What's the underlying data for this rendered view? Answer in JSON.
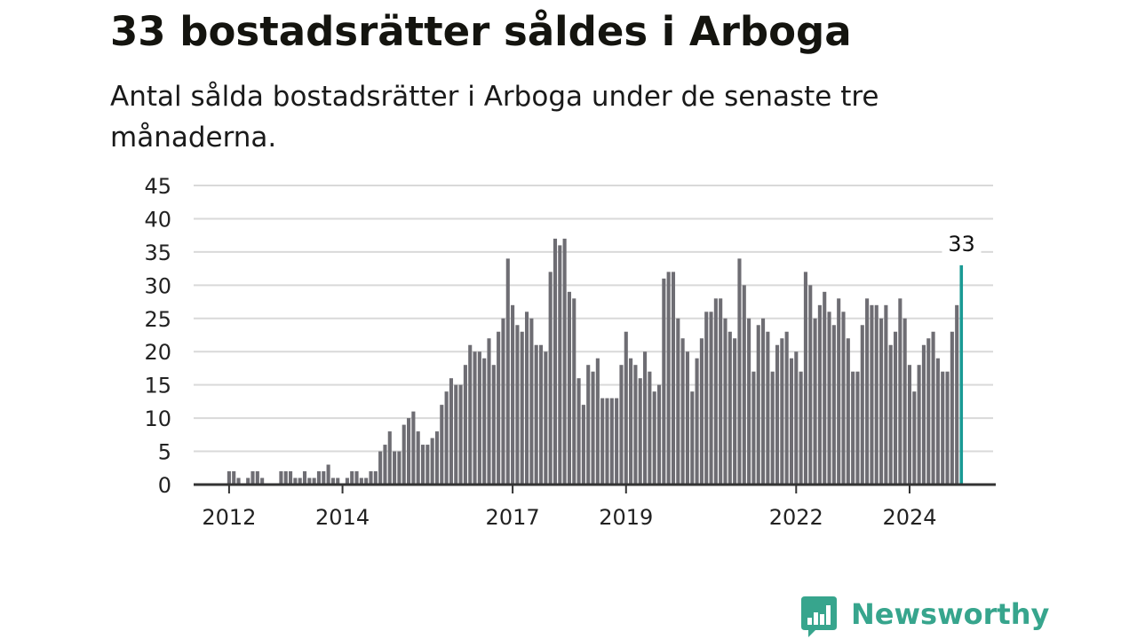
{
  "title": "33 bostadsrätter såldes i Arboga",
  "subtitle": "Antal sålda bostadsrätter i Arboga under de senaste tre månaderna.",
  "brand": {
    "name": "Newsworthy",
    "icon": "bar-chart-speech-bubble-icon",
    "color": "#37a58d"
  },
  "colors": {
    "bar": "#6e6d73",
    "highlight": "#1a9a94",
    "grid": "#d9d9d9",
    "axis": "#333333"
  },
  "chart_data": {
    "type": "bar",
    "title": "33 bostadsrätter såldes i Arboga",
    "subtitle": "Antal sålda bostadsrätter i Arboga under de senaste tre månaderna.",
    "xlabel": "",
    "ylabel": "",
    "ylim": [
      0,
      45
    ],
    "yticks": [
      0,
      5,
      10,
      15,
      20,
      25,
      30,
      35,
      40,
      45
    ],
    "grid": true,
    "x_ticks": [
      {
        "label": "2012",
        "index": 7
      },
      {
        "label": "2014",
        "index": 31
      },
      {
        "label": "2017",
        "index": 67
      },
      {
        "label": "2019",
        "index": 91
      },
      {
        "label": "2022",
        "index": 127
      },
      {
        "label": "2024",
        "index": 151
      }
    ],
    "values": [
      0,
      0,
      0,
      0,
      0,
      0,
      0,
      2,
      2,
      1,
      0,
      1,
      2,
      2,
      1,
      0,
      0,
      0,
      2,
      2,
      2,
      1,
      1,
      2,
      1,
      1,
      2,
      2,
      3,
      1,
      1,
      0,
      1,
      2,
      2,
      1,
      1,
      2,
      2,
      5,
      6,
      8,
      5,
      5,
      9,
      10,
      11,
      8,
      6,
      6,
      7,
      8,
      12,
      14,
      16,
      15,
      15,
      18,
      21,
      20,
      20,
      19,
      22,
      18,
      23,
      25,
      34,
      27,
      24,
      23,
      26,
      25,
      21,
      21,
      20,
      32,
      37,
      36,
      37,
      29,
      28,
      16,
      12,
      18,
      17,
      19,
      13,
      13,
      13,
      13,
      18,
      23,
      19,
      18,
      16,
      20,
      17,
      14,
      15,
      31,
      32,
      32,
      25,
      22,
      20,
      14,
      19,
      22,
      26,
      26,
      28,
      28,
      25,
      23,
      22,
      34,
      30,
      25,
      17,
      24,
      25,
      23,
      17,
      21,
      22,
      23,
      19,
      20,
      17,
      32,
      30,
      25,
      27,
      29,
      26,
      24,
      28,
      26,
      22,
      17,
      17,
      24,
      28,
      27,
      27,
      25,
      27,
      21,
      23,
      28,
      25,
      18,
      14,
      18,
      21,
      22,
      23,
      19,
      17,
      17,
      23,
      27,
      33
    ],
    "highlight": {
      "index": 162,
      "value": 33,
      "label": "33"
    }
  }
}
